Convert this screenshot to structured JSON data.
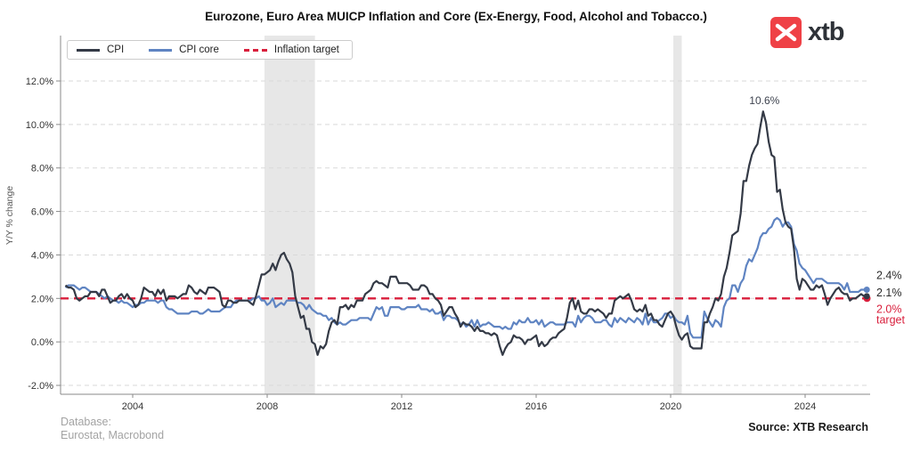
{
  "header": {
    "logo_text": "xtb"
  },
  "legend": {
    "items": [
      {
        "label": "CPI",
        "color": "#343a46",
        "dashed": false
      },
      {
        "label": "CPI core",
        "color": "#5f84c2",
        "dashed": false
      },
      {
        "label": "Inflation target",
        "color": "#d91f3c",
        "dashed": true
      }
    ]
  },
  "chart_data": {
    "type": "line",
    "title": "Eurozone, Euro Area MUICP Inflation and Core (Ex-Energy, Food, Alcohol and Tobacco.)",
    "xlabel": "",
    "ylabel": "Y/Y % change",
    "xlim": [
      2001.85,
      2025.95
    ],
    "ylim": [
      -2.4,
      14.1
    ],
    "grid": true,
    "legend_position": "top-left",
    "x_ticks": [
      2004,
      2008,
      2012,
      2016,
      2020,
      2024
    ],
    "y_ticks": [
      -2,
      0,
      2,
      4,
      6,
      8,
      10,
      12
    ],
    "x_start_year": 2002,
    "x_step_months": 1,
    "series": [
      {
        "name": "CPI",
        "color": "#343a46",
        "values": [
          2.6,
          2.5,
          2.5,
          2.4,
          2.0,
          1.9,
          2.0,
          2.1,
          2.1,
          2.3,
          2.3,
          2.3,
          2.1,
          2.4,
          2.4,
          2.1,
          1.8,
          1.9,
          1.9,
          2.1,
          2.2,
          2.0,
          2.2,
          2.0,
          1.9,
          1.6,
          1.7,
          2.0,
          2.5,
          2.4,
          2.3,
          2.3,
          2.1,
          2.4,
          2.2,
          2.4,
          1.9,
          2.1,
          2.1,
          2.1,
          2.0,
          2.1,
          2.2,
          2.2,
          2.6,
          2.5,
          2.3,
          2.2,
          2.4,
          2.3,
          2.2,
          2.5,
          2.5,
          2.5,
          2.4,
          2.3,
          1.7,
          1.6,
          1.9,
          1.9,
          1.8,
          1.8,
          1.9,
          1.9,
          1.9,
          1.9,
          1.8,
          1.7,
          2.1,
          2.6,
          3.1,
          3.1,
          3.2,
          3.3,
          3.6,
          3.3,
          3.7,
          4.0,
          4.1,
          3.8,
          3.6,
          3.2,
          2.1,
          1.6,
          1.1,
          1.2,
          0.6,
          0.6,
          0.0,
          -0.1,
          -0.6,
          -0.2,
          -0.3,
          -0.1,
          0.5,
          0.9,
          1.0,
          0.8,
          1.6,
          1.6,
          1.7,
          1.5,
          1.7,
          1.6,
          1.9,
          1.9,
          1.9,
          2.2,
          2.3,
          2.4,
          2.7,
          2.8,
          2.7,
          2.7,
          2.6,
          2.5,
          3.0,
          3.0,
          3.0,
          2.7,
          2.7,
          2.7,
          2.7,
          2.6,
          2.4,
          2.4,
          2.4,
          2.6,
          2.6,
          2.5,
          2.2,
          2.2,
          2.0,
          1.9,
          1.7,
          1.2,
          1.4,
          1.6,
          1.6,
          1.3,
          1.1,
          0.7,
          0.9,
          0.8,
          0.8,
          0.7,
          0.5,
          0.7,
          0.5,
          0.5,
          0.4,
          0.4,
          0.3,
          0.4,
          0.3,
          -0.2,
          -0.6,
          -0.3,
          -0.1,
          0.0,
          0.3,
          0.2,
          0.2,
          0.1,
          -0.1,
          0.1,
          0.1,
          0.2,
          0.3,
          -0.2,
          0.0,
          -0.2,
          -0.1,
          0.1,
          0.2,
          0.2,
          0.4,
          0.5,
          0.6,
          1.1,
          1.8,
          2.0,
          1.5,
          1.9,
          1.4,
          1.3,
          1.3,
          1.5,
          1.5,
          1.4,
          1.5,
          1.4,
          1.3,
          1.1,
          1.3,
          1.3,
          1.9,
          2.0,
          2.1,
          2.0,
          2.1,
          2.2,
          1.9,
          1.5,
          1.4,
          1.5,
          1.4,
          1.7,
          1.2,
          1.3,
          1.0,
          1.0,
          0.8,
          0.7,
          1.0,
          1.3,
          1.4,
          1.2,
          0.7,
          0.3,
          0.1,
          0.3,
          0.4,
          -0.2,
          -0.3,
          -0.3,
          -0.3,
          -0.3,
          0.9,
          0.9,
          1.3,
          1.6,
          2.0,
          1.9,
          2.2,
          3.0,
          3.4,
          4.1,
          4.9,
          5.0,
          5.1,
          5.9,
          7.4,
          7.4,
          8.1,
          8.6,
          8.9,
          9.1,
          9.9,
          10.6,
          10.1,
          9.2,
          8.6,
          8.5,
          6.9,
          7.0,
          6.1,
          5.5,
          5.3,
          5.2,
          4.3,
          2.9,
          2.4,
          2.9,
          2.8,
          2.6,
          2.4,
          2.4,
          2.6,
          2.5,
          2.6,
          2.2,
          1.7,
          2.0,
          2.2,
          2.4,
          2.5,
          2.3,
          2.2,
          2.2,
          1.9,
          2.0,
          2.0,
          2.1,
          2.2,
          2.1,
          2.1
        ]
      },
      {
        "name": "CPI core",
        "color": "#5f84c2",
        "values": [
          2.5,
          2.6,
          2.6,
          2.6,
          2.5,
          2.4,
          2.5,
          2.5,
          2.4,
          2.3,
          2.3,
          2.3,
          2.2,
          2.1,
          2.0,
          2.1,
          2.0,
          1.9,
          1.9,
          1.8,
          1.9,
          1.8,
          1.8,
          1.7,
          1.6,
          1.7,
          1.7,
          1.8,
          1.8,
          1.9,
          1.9,
          1.9,
          1.9,
          1.8,
          1.9,
          1.9,
          1.6,
          1.5,
          1.5,
          1.4,
          1.3,
          1.3,
          1.3,
          1.3,
          1.3,
          1.4,
          1.4,
          1.4,
          1.3,
          1.3,
          1.4,
          1.5,
          1.4,
          1.4,
          1.4,
          1.4,
          1.5,
          1.6,
          1.6,
          1.6,
          1.8,
          1.9,
          1.9,
          1.9,
          1.9,
          1.9,
          1.9,
          2.0,
          2.0,
          2.1,
          1.9,
          1.9,
          1.7,
          1.8,
          2.0,
          1.6,
          1.7,
          1.8,
          1.7,
          1.9,
          1.9,
          1.9,
          1.9,
          1.8,
          1.8,
          1.7,
          1.5,
          1.7,
          1.5,
          1.4,
          1.3,
          1.3,
          1.2,
          1.2,
          1.0,
          1.1,
          0.9,
          0.8,
          0.9,
          0.8,
          0.8,
          0.9,
          1.0,
          1.0,
          1.0,
          1.1,
          1.1,
          1.1,
          1.1,
          1.0,
          1.3,
          1.6,
          1.5,
          1.6,
          1.2,
          1.2,
          1.6,
          1.6,
          1.6,
          1.6,
          1.5,
          1.5,
          1.6,
          1.6,
          1.6,
          1.6,
          1.7,
          1.5,
          1.5,
          1.5,
          1.4,
          1.5,
          1.3,
          1.3,
          1.4,
          1.0,
          1.2,
          1.2,
          1.1,
          1.1,
          1.0,
          0.8,
          0.9,
          0.7,
          0.8,
          1.0,
          0.7,
          1.0,
          0.7,
          0.8,
          0.8,
          0.9,
          0.8,
          0.7,
          0.7,
          0.7,
          0.6,
          0.7,
          0.6,
          0.6,
          0.9,
          0.8,
          1.0,
          0.9,
          0.9,
          1.1,
          0.9,
          0.9,
          1.0,
          0.8,
          1.0,
          0.7,
          0.8,
          0.9,
          0.9,
          0.8,
          0.8,
          0.8,
          0.8,
          0.9,
          0.9,
          0.9,
          0.7,
          1.2,
          0.9,
          1.1,
          1.2,
          1.2,
          1.1,
          0.9,
          0.9,
          0.9,
          1.0,
          1.0,
          0.8,
          0.7,
          1.1,
          0.9,
          1.1,
          1.0,
          0.9,
          1.1,
          1.0,
          0.9,
          1.1,
          1.0,
          0.8,
          1.3,
          0.8,
          1.1,
          0.9,
          0.9,
          1.0,
          1.1,
          1.3,
          1.3,
          1.1,
          1.2,
          1.0,
          0.9,
          0.9,
          0.8,
          1.2,
          0.4,
          0.2,
          0.2,
          0.2,
          0.2,
          1.4,
          1.1,
          0.9,
          0.7,
          1.0,
          0.9,
          0.7,
          1.6,
          1.9,
          2.0,
          2.6,
          2.6,
          2.3,
          2.7,
          2.9,
          3.5,
          3.8,
          3.7,
          4.0,
          4.3,
          4.8,
          5.0,
          5.0,
          5.2,
          5.3,
          5.6,
          5.7,
          5.6,
          5.3,
          5.5,
          5.5,
          5.3,
          4.5,
          4.2,
          3.6,
          3.4,
          3.3,
          3.1,
          2.9,
          2.7,
          2.9,
          2.9,
          2.9,
          2.8,
          2.7,
          2.7,
          2.7,
          2.7,
          2.7,
          2.6,
          2.4,
          2.7,
          2.3,
          2.3,
          2.3,
          2.3,
          2.4,
          2.4,
          2.4
        ]
      }
    ],
    "target_line": {
      "label": "Inflation target",
      "value": 2.0,
      "color": "#d91f3c"
    },
    "recession_bands": [
      {
        "start": 2007.92,
        "end": 2009.42
      },
      {
        "start": 2020.08,
        "end": 2020.33
      }
    ],
    "peak_annotation": {
      "text": "10.6%",
      "x": 2022.79,
      "y": 10.6
    },
    "end_labels": [
      {
        "text": "2.4%",
        "anchor_value": 3.05,
        "color": "#2b2b2b"
      },
      {
        "text": "2.1%",
        "anchor_value": 2.26,
        "color": "#2b2b2b"
      },
      {
        "text": "2.0%",
        "anchor_value": 1.5,
        "color": "#d91f3c"
      },
      {
        "text": "target",
        "anchor_value": 1.0,
        "color": "#d91f3c"
      }
    ]
  },
  "footer": {
    "database_label": "Database:",
    "database_value": "Eurostat, Macrobond",
    "source": "Source: XTB Research"
  }
}
